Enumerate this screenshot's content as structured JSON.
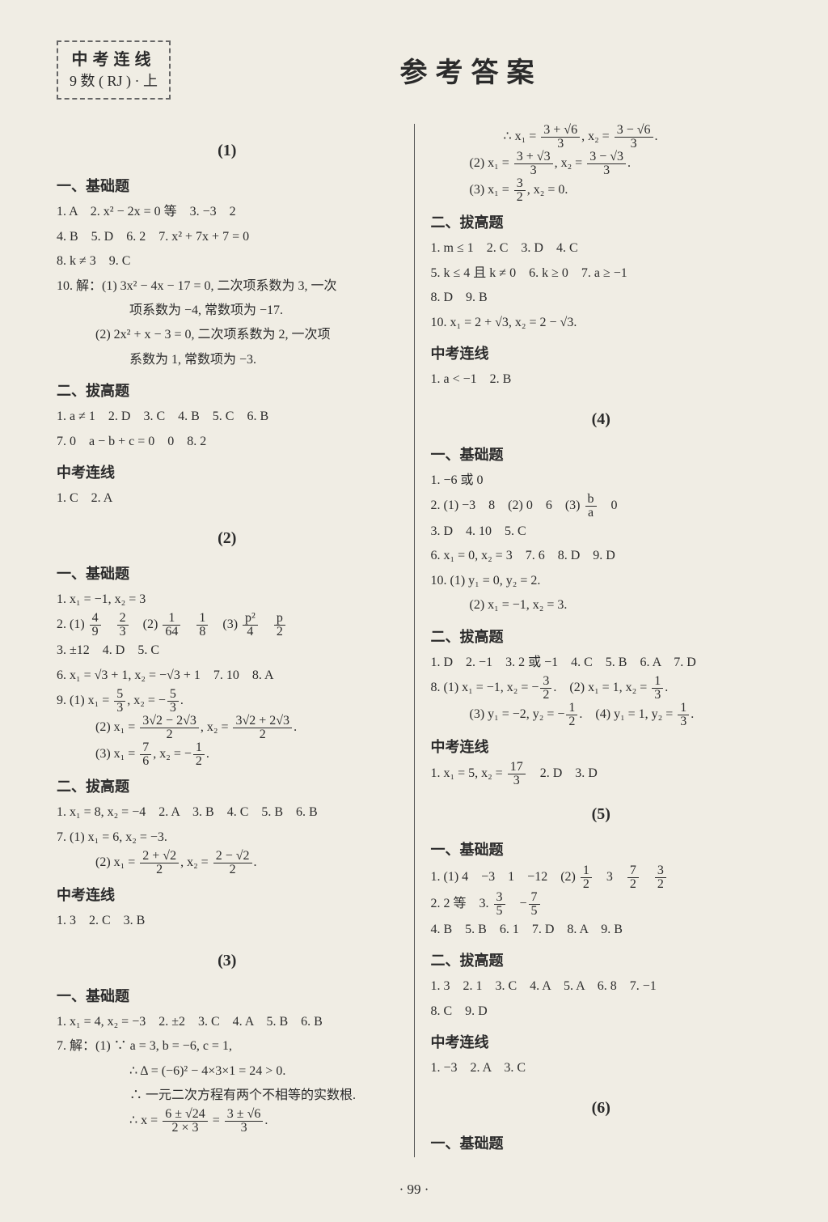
{
  "header": {
    "box_line1": "中考连线",
    "box_line2": "9 数 ( RJ ) · 上",
    "main_title": "参考答案"
  },
  "left": {
    "sec1": {
      "num": "(1)",
      "h1": "一、基础题",
      "l1": "1. A　2. x² − 2x = 0 等　3. −3　2",
      "l2": "4. B　5. D　6. 2　7. x² + 7x + 7 = 0",
      "l3": "8. k ≠ 3　9. C",
      "l4a": "10. 解：(1) 3x² − 4x − 17 = 0, 二次项系数为 3, 一次",
      "l4b": "项系数为 −4, 常数项为 −17.",
      "l4c": "(2) 2x² + x − 3 = 0, 二次项系数为 2, 一次项",
      "l4d": "系数为 1, 常数项为 −3.",
      "h2": "二、拔高题",
      "l5": "1. a ≠ 1　2. D　3. C　4. B　5. C　6. B",
      "l6": "7. 0　a − b + c = 0　0　8. 2",
      "h3": "中考连线",
      "l7": "1. C　2. A"
    },
    "sec2": {
      "num": "(2)",
      "h1": "一、基础题",
      "l1": "1. x₁ = −1, x₂ = 3",
      "l3": "3. ±12　4. D　5. C",
      "l4": "6. x₁ = √3 + 1, x₂ = −√3 + 1　7. 10　8. A",
      "h2": "二、拔高题",
      "l8": "1. x₁ = 8, x₂ = −4　2. A　3. B　4. C　5. B　6. B",
      "l9": "7. (1) x₁ = 6, x₂ = −3.",
      "h3": "中考连线",
      "l11": "1. 3　2. C　3. B"
    },
    "sec3": {
      "num": "(3)",
      "h1": "一、基础题",
      "l1": "1. x₁ = 4, x₂ = −3　2. ±2　3. C　4. A　5. B　6. B",
      "l2": "7. 解：(1) ∵ a = 3, b = −6, c = 1,",
      "l3": "∴ Δ = (−6)² − 4×3×1 = 24 > 0.",
      "l4": "∴ 一元二次方程有两个不相等的实数根."
    }
  },
  "right": {
    "cont": {
      "h2": "二、拔高题",
      "l4": "1. m ≤ 1　2. C　3. D　4. C",
      "l5": "5. k ≤ 4 且 k ≠ 0　6. k ≥ 0　7. a ≥ −1",
      "l6": "8. D　9. B",
      "l7": "10. x₁ = 2 + √3, x₂ = 2 − √3.",
      "h3": "中考连线",
      "l8": "1. a < −1　2. B"
    },
    "sec4": {
      "num": "(4)",
      "h1": "一、基础题",
      "l1": "1. −6 或 0",
      "l3": "3. D　4. 10　5. C",
      "l4": "6. x₁ = 0, x₂ = 3　7. 6　8. D　9. D",
      "l5": "10. (1) y₁ = 0, y₂ = 2.",
      "l6": "(2) x₁ = −1, x₂ = 3.",
      "h2": "二、拔高题",
      "l7": "1. D　2. −1　3. 2 或 −1　4. C　5. B　6. A　7. D",
      "h3": "中考连线"
    },
    "sec5": {
      "num": "(5)",
      "h1": "一、基础题",
      "l3": "4. B　5. B　6. 1　7. D　8. A　9. B",
      "h2": "二、拔高题",
      "l4": "1. 3　2. 1　3. C　4. A　5. A　6. 8　7. −1",
      "l5": "8. C　9. D",
      "h3": "中考连线",
      "l6": "1. −3　2. A　3. C"
    },
    "sec6": {
      "num": "(6)",
      "h1": "一、基础题"
    }
  },
  "page_number": "· 99 ·"
}
